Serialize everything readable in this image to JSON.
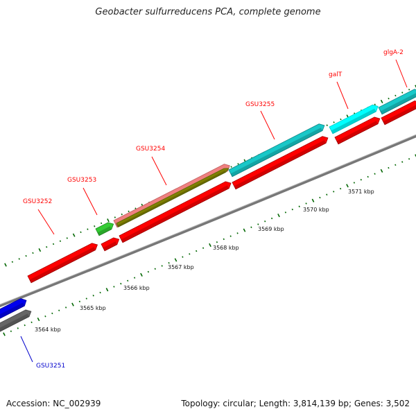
{
  "title": "Geobacter sulfurreducens PCA, complete genome",
  "footer": {
    "accession": "Accession: NC_002939",
    "summary": "Topology: circular; Length: 3,814,139 bp; Genes: 3,502"
  },
  "colors": {
    "red": "#ff0000",
    "cyan": "#19c8c8",
    "bright_cyan": "#00ffff",
    "green": "#33cc33",
    "olive": "#808000",
    "pink": "#f08080",
    "blue": "#0000ee",
    "gray": "#808080",
    "label_red": "#ff0000",
    "label_blue": "#0000cc",
    "tick_green": "#006600"
  },
  "kbp_labels": [
    "3564 kbp",
    "3565 kbp",
    "3566 kbp",
    "3567 kbp",
    "3568 kbp",
    "3569 kbp",
    "3570 kbp",
    "3571 kbp"
  ],
  "gene_labels": [
    {
      "name": "GSU3251",
      "color": "label_blue"
    },
    {
      "name": "GSU3252",
      "color": "label_red"
    },
    {
      "name": "GSU3253",
      "color": "label_red"
    },
    {
      "name": "GSU3254",
      "color": "label_red"
    },
    {
      "name": "GSU3255",
      "color": "label_red"
    },
    {
      "name": "galT",
      "color": "label_red"
    },
    {
      "name": "glgA-2",
      "color": "label_red"
    }
  ]
}
